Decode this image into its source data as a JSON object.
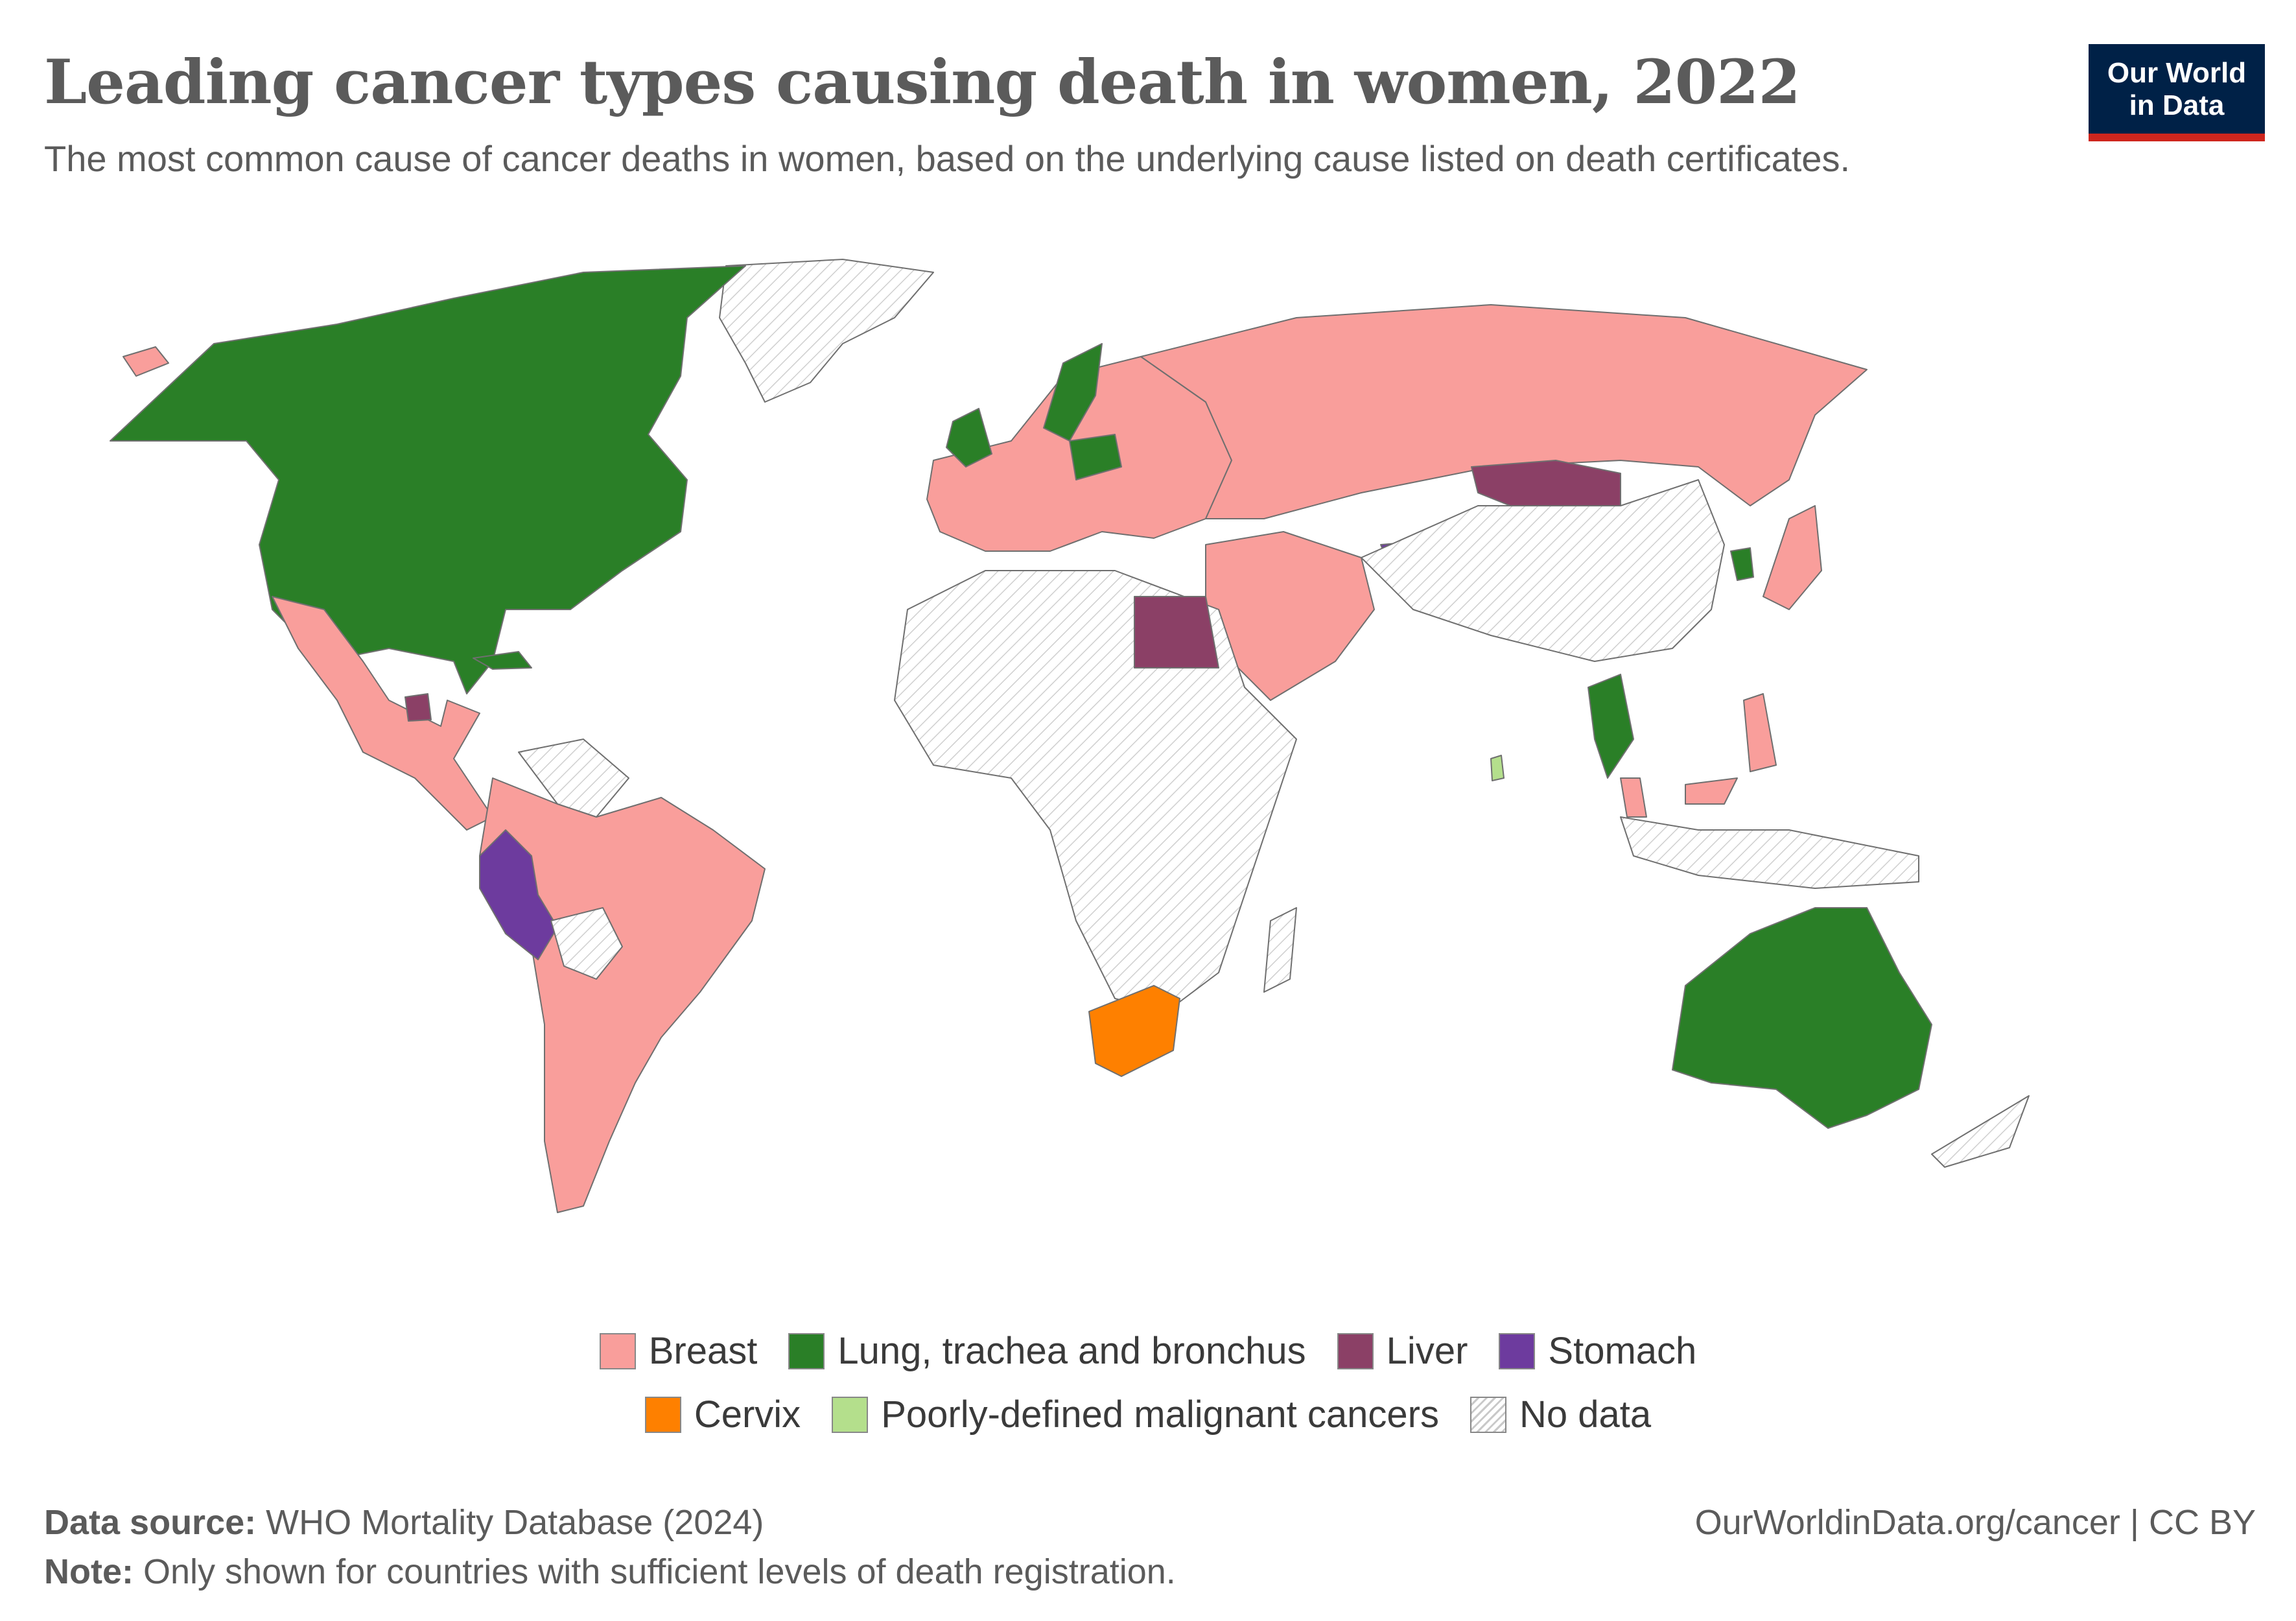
{
  "header": {
    "title": "Leading cancer types causing death in women, 2022",
    "subtitle": "The most common cause of cancer deaths in women, based on the underlying cause listed on death certificates.",
    "logo_line1": "Our World",
    "logo_line2": "in Data"
  },
  "legend": {
    "row1": [
      {
        "label": "Breast",
        "color": "#f99e9b"
      },
      {
        "label": "Lung, trachea and bronchus",
        "color": "#2a7f27"
      },
      {
        "label": "Liver",
        "color": "#8b4066"
      },
      {
        "label": "Stomach",
        "color": "#6d3b9e"
      }
    ],
    "row2": [
      {
        "label": "Cervix",
        "color": "#fe8000"
      },
      {
        "label": "Poorly-defined malignant cancers",
        "color": "#b4df8c"
      },
      {
        "label": "No data",
        "color": "hatch"
      }
    ]
  },
  "footer": {
    "source_label": "Data source:",
    "source_text": "WHO Mortality Database (2024)",
    "note_label": "Note:",
    "note_text": "Only shown for countries with sufficient levels of death registration.",
    "url_text": "OurWorldinData.org/cancer",
    "separator": "|",
    "license": "CC BY"
  }
}
